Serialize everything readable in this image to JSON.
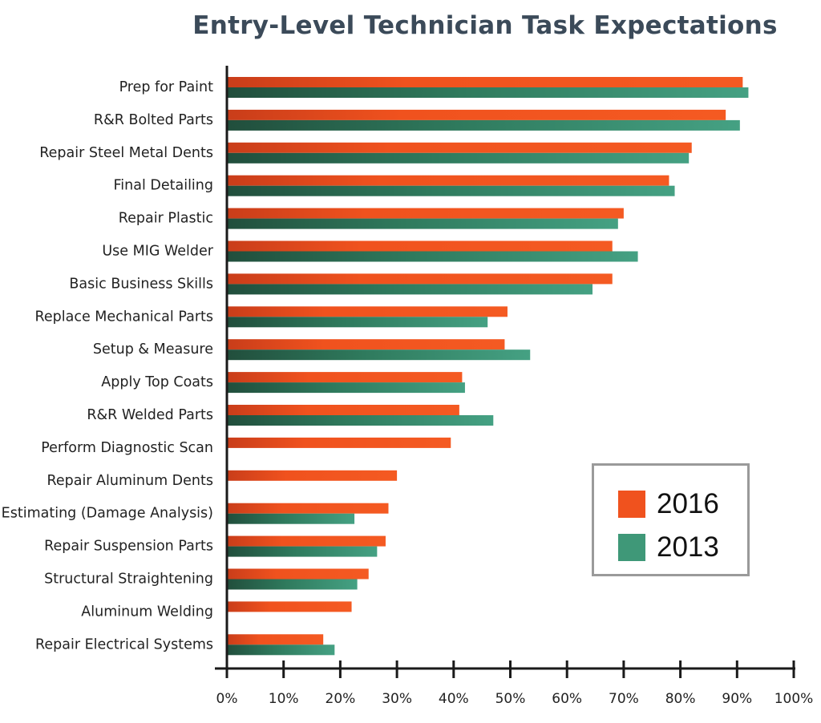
{
  "chart_data": {
    "type": "bar",
    "orientation": "horizontal",
    "title": "Entry-Level Technician Task Expectations",
    "categories": [
      "Prep for Paint",
      "R&R Bolted Parts",
      "Repair Steel Metal Dents",
      "Final Detailing",
      "Repair Plastic",
      "Use MIG Welder",
      "Basic Business Skills",
      "Replace Mechanical Parts",
      "Setup & Measure",
      "Apply Top Coats",
      "R&R Welded Parts",
      "Perform Diagnostic Scan",
      "Repair Aluminum Dents",
      "Estimating (Damage Analysis)",
      "Repair Suspension Parts",
      "Structural Straightening",
      "Aluminum Welding",
      "Repair Electrical Systems"
    ],
    "series": [
      {
        "name": "2016",
        "color": "#f0521e",
        "values": [
          91,
          88,
          82,
          78,
          70,
          68,
          68,
          49.5,
          49,
          41.5,
          41,
          39.5,
          30,
          28.5,
          28,
          25,
          22,
          17
        ]
      },
      {
        "name": "2013",
        "color": "#3f9878",
        "values": [
          92,
          90.5,
          81.5,
          79,
          69,
          72.5,
          64.5,
          46,
          53.5,
          42,
          47,
          null,
          null,
          22.5,
          26.5,
          23,
          null,
          19
        ]
      }
    ],
    "xlim": [
      0,
      100
    ],
    "xticks": [
      "0%",
      "10%",
      "20%",
      "30%",
      "40%",
      "50%",
      "60%",
      "70%",
      "80%",
      "90%",
      "100%"
    ],
    "legend_position": "lower-right",
    "grid": false
  },
  "legend": [
    {
      "label": "2016",
      "color": "#f0521e"
    },
    {
      "label": "2013",
      "color": "#3f9878"
    }
  ]
}
